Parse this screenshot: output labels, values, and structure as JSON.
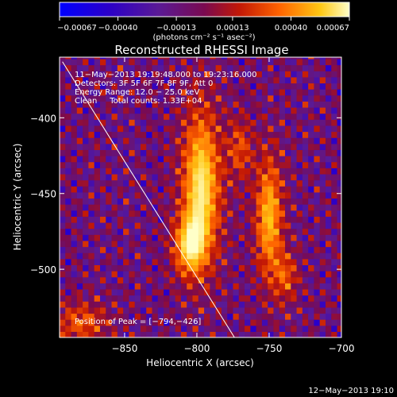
{
  "chart_data": {
    "type": "heatmap",
    "title": "Reconstructed RHESSI Image",
    "xlabel": "Heliocentric X (arcsec)",
    "ylabel": "Heliocentric Y (arcsec)",
    "xlim": [
      -895,
      -700
    ],
    "ylim": [
      -545,
      -360
    ],
    "x_ticks": [
      -850,
      -800,
      -750,
      -700
    ],
    "x_tick_labels": [
      "−850",
      "−800",
      "−750",
      "−700"
    ],
    "y_ticks": [
      -400,
      -450,
      -500
    ],
    "y_tick_labels": [
      "−400",
      "−450",
      "−500"
    ],
    "colorbar": {
      "min": -0.00067,
      "max": 0.00067,
      "ticks": [
        -0.00067,
        -0.0004,
        -0.00013,
        0.00013,
        0.0004,
        0.00067
      ],
      "tick_labels": [
        "−0.00067",
        "−0.00040",
        "−0.00013",
        "0.00013",
        "0.00040",
        "0.00067"
      ],
      "units_label": "(photons cm⁻² s⁻¹ asec⁻²)"
    },
    "info_lines": [
      "11−May−2013 19:19:48.000 to 19:23:16.000",
      "Detectors: 3F 5F 6F 7F 8F 9F, Att 0",
      "Energy Range: 12.0 − 25.0 keV",
      "Clean     Total counts: 1.33E+04"
    ],
    "peak_label": "Position of Peak = [−794,−426]",
    "peak": [
      -794,
      -426
    ],
    "limb_line": {
      "points": [
        [
          -893,
          -363
        ],
        [
          -774,
          -545
        ]
      ]
    },
    "sources": [
      {
        "x": -797,
        "y": -445,
        "sx": 10,
        "sy": 38,
        "amp": 1.0
      },
      {
        "x": -806,
        "y": -485,
        "sx": 8,
        "sy": 14,
        "amp": 0.7
      },
      {
        "x": -750,
        "y": -465,
        "sx": 7,
        "sy": 30,
        "amp": 0.85
      },
      {
        "x": -738,
        "y": -505,
        "sx": 6,
        "sy": 12,
        "amp": 0.5
      },
      {
        "x": -770,
        "y": -420,
        "sx": 6,
        "sy": 15,
        "amp": 0.5
      },
      {
        "x": -880,
        "y": -535,
        "sx": 14,
        "sy": 10,
        "amp": 0.55
      }
    ],
    "colors": {
      "line": "#ffffff",
      "background": "#000000"
    }
  },
  "footer": {
    "timestamp": "12−May−2013 19:10"
  }
}
